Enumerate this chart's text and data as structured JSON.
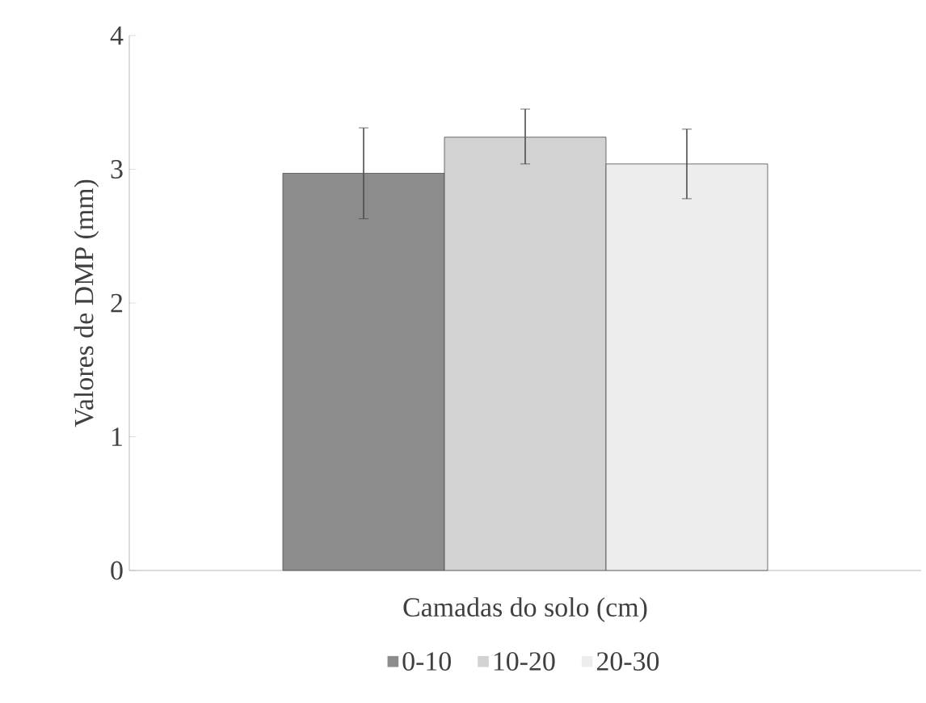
{
  "chart_data": {
    "type": "bar",
    "xlabel": "Camadas do solo (cm)",
    "ylabel": "Valores de DMP (mm)",
    "categories": [
      null
    ],
    "series": [
      {
        "name": "0-10",
        "color": "#8c8c8c",
        "values": [
          2.97
        ],
        "errors": [
          [
            2.63,
            3.31
          ]
        ]
      },
      {
        "name": "10-20",
        "color": "#d2d2d2",
        "values": [
          3.24
        ],
        "errors": [
          [
            3.04,
            3.45
          ]
        ]
      },
      {
        "name": "20-30",
        "color": "#ededed",
        "values": [
          3.04
        ],
        "errors": [
          [
            2.78,
            3.3
          ]
        ]
      }
    ],
    "ylim": [
      0,
      4
    ],
    "yticks": [
      0,
      1,
      2,
      3,
      4
    ],
    "grid": false,
    "legend": "bottom"
  }
}
